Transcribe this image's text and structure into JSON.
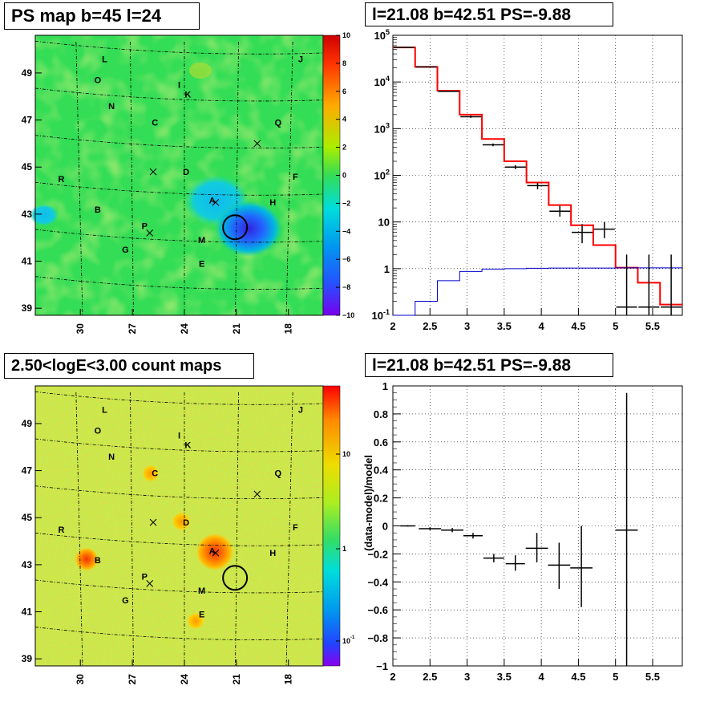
{
  "panels": {
    "ps_map_title": "PS map b=45 l=24",
    "spectrum_title": "l=21.08 b=42.51 PS=-9.88",
    "count_map_title": "2.50<logE<3.00 count maps",
    "residual_title": "l=21.08 b=42.51 PS=-9.88"
  },
  "colors": {
    "data": "#000000",
    "model_total": "#ff0000",
    "model_ps": "#0000cc",
    "ps_map_bg": "#33dd55",
    "count_map_bg": "#cce84a"
  },
  "chart_data": [
    {
      "type": "heatmap",
      "name": "ps_map",
      "title": "PS map b=45 l=24",
      "x_ticks": [
        "30",
        "27",
        "24",
        "21",
        "18"
      ],
      "y_ticks": [
        "49",
        "47",
        "45",
        "43",
        "41",
        "39"
      ],
      "colorbar_ticks": [
        "10",
        "8",
        "6",
        "4",
        "2",
        "0",
        "−2",
        "−4",
        "−6",
        "−8",
        "−10"
      ],
      "colorbar_range": [
        -10,
        10
      ],
      "source_labels": [
        {
          "t": "L",
          "l": 28.6,
          "b": 49.6
        },
        {
          "t": "J",
          "l": 17.3,
          "b": 49.6
        },
        {
          "t": "O",
          "l": 29.0,
          "b": 48.7
        },
        {
          "t": "I",
          "l": 24.3,
          "b": 48.5
        },
        {
          "t": "K",
          "l": 23.8,
          "b": 48.1
        },
        {
          "t": "N",
          "l": 28.2,
          "b": 47.6
        },
        {
          "t": "C",
          "l": 25.7,
          "b": 46.9
        },
        {
          "t": "Q",
          "l": 18.6,
          "b": 46.9
        },
        {
          "t": "D",
          "l": 23.9,
          "b": 44.8
        },
        {
          "t": "F",
          "l": 17.6,
          "b": 44.6
        },
        {
          "t": "R",
          "l": 31.1,
          "b": 44.5
        },
        {
          "t": "A",
          "l": 22.4,
          "b": 43.6
        },
        {
          "t": "H",
          "l": 18.9,
          "b": 43.5
        },
        {
          "t": "B",
          "l": 29.0,
          "b": 43.2
        },
        {
          "t": "P",
          "l": 26.3,
          "b": 42.5
        },
        {
          "t": "M",
          "l": 23.0,
          "b": 41.9
        },
        {
          "t": "G",
          "l": 27.4,
          "b": 41.5
        },
        {
          "t": "E",
          "l": 23.0,
          "b": 40.9
        }
      ],
      "cross_markers": [
        {
          "l": 25.8,
          "b": 44.8
        },
        {
          "l": 22.2,
          "b": 43.5
        },
        {
          "l": 26.0,
          "b": 42.2
        },
        {
          "l": 19.8,
          "b": 46.0
        }
      ],
      "circle_marker": {
        "l": 21.08,
        "b": 42.51
      }
    },
    {
      "type": "line",
      "name": "spectrum",
      "title": "l=21.08 b=42.51 PS=-9.88",
      "log_y": true,
      "xlim": [
        2,
        5.9
      ],
      "ylim": [
        0.1,
        100000
      ],
      "x_ticks": [
        "2",
        "2.5",
        "3",
        "3.5",
        "4",
        "4.5",
        "5",
        "5.5"
      ],
      "y_ticks": [
        "10^-1",
        "1",
        "10",
        "10^2",
        "10^3",
        "10^4",
        "10^5"
      ],
      "bin_edges": [
        2.0,
        2.3,
        2.6,
        2.9,
        3.2,
        3.5,
        3.8,
        4.1,
        4.4,
        4.7,
        5.0,
        5.3,
        5.6,
        5.9
      ],
      "series": [
        {
          "kind": "step",
          "color_key": "model_total",
          "values": [
            55000,
            21000,
            6500,
            2000,
            600,
            200,
            70,
            23,
            8.5,
            3.2,
            1.05,
            0.5,
            0.17
          ]
        },
        {
          "kind": "step",
          "color_key": "model_ps",
          "values": [
            0.1,
            0.2,
            0.55,
            0.87,
            0.98,
            1.0,
            1.02,
            1.03,
            1.03,
            1.03,
            1.04,
            1.04,
            1.04
          ]
        },
        {
          "kind": "errorbar",
          "color_key": "data",
          "points": [
            {
              "x": 2.15,
              "y": 55000,
              "lo": 55000,
              "hi": 55000
            },
            {
              "x": 2.45,
              "y": 21000,
              "lo": 21000,
              "hi": 21000
            },
            {
              "x": 2.75,
              "y": 6300,
              "lo": 6300,
              "hi": 6300
            },
            {
              "x": 3.05,
              "y": 1800,
              "lo": 1700,
              "hi": 1900
            },
            {
              "x": 3.35,
              "y": 450,
              "lo": 420,
              "hi": 480
            },
            {
              "x": 3.65,
              "y": 150,
              "lo": 135,
              "hi": 165
            },
            {
              "x": 3.95,
              "y": 60,
              "lo": 50,
              "hi": 70
            },
            {
              "x": 4.25,
              "y": 17,
              "lo": 13,
              "hi": 22
            },
            {
              "x": 4.55,
              "y": 6,
              "lo": 3.5,
              "hi": 9
            },
            {
              "x": 4.85,
              "y": 7,
              "lo": 4.5,
              "hi": 10
            },
            {
              "x": 5.15,
              "y": 0.15,
              "lo": 0.1,
              "hi": 2
            },
            {
              "x": 5.45,
              "y": 0.15,
              "lo": 0.1,
              "hi": 2
            },
            {
              "x": 5.75,
              "y": 0.15,
              "lo": 0.1,
              "hi": 2
            }
          ]
        }
      ]
    },
    {
      "type": "heatmap",
      "name": "count_map",
      "title": "2.50<logE<3.00 count maps",
      "x_ticks": [
        "30",
        "27",
        "24",
        "21",
        "18"
      ],
      "y_ticks": [
        "49",
        "47",
        "45",
        "43",
        "41",
        "39"
      ],
      "colorbar_ticks": [
        "10",
        "1",
        "10^-1"
      ],
      "log_z": true,
      "source_labels": [
        {
          "t": "L",
          "l": 28.6,
          "b": 49.6
        },
        {
          "t": "J",
          "l": 17.3,
          "b": 49.6
        },
        {
          "t": "O",
          "l": 29.0,
          "b": 48.7
        },
        {
          "t": "I",
          "l": 24.3,
          "b": 48.5
        },
        {
          "t": "K",
          "l": 23.8,
          "b": 48.1
        },
        {
          "t": "N",
          "l": 28.2,
          "b": 47.6
        },
        {
          "t": "C",
          "l": 25.7,
          "b": 46.9
        },
        {
          "t": "Q",
          "l": 18.6,
          "b": 46.9
        },
        {
          "t": "D",
          "l": 23.9,
          "b": 44.8
        },
        {
          "t": "F",
          "l": 17.6,
          "b": 44.6
        },
        {
          "t": "R",
          "l": 31.1,
          "b": 44.5
        },
        {
          "t": "A",
          "l": 22.4,
          "b": 43.6
        },
        {
          "t": "H",
          "l": 18.9,
          "b": 43.5
        },
        {
          "t": "B",
          "l": 29.0,
          "b": 43.2
        },
        {
          "t": "P",
          "l": 26.3,
          "b": 42.5
        },
        {
          "t": "M",
          "l": 23.0,
          "b": 41.9
        },
        {
          "t": "G",
          "l": 27.4,
          "b": 41.5
        },
        {
          "t": "E",
          "l": 23.0,
          "b": 40.9
        }
      ],
      "cross_markers": [
        {
          "l": 25.8,
          "b": 44.8
        },
        {
          "l": 22.2,
          "b": 43.5
        },
        {
          "l": 26.0,
          "b": 42.2
        },
        {
          "l": 19.8,
          "b": 46.0
        }
      ],
      "circle_marker": {
        "l": 21.08,
        "b": 42.51
      }
    },
    {
      "type": "scatter",
      "name": "residual",
      "title": "l=21.08 b=42.51 PS=-9.88",
      "ylabel": "(data-model)/model",
      "xlim": [
        2,
        5.9
      ],
      "ylim": [
        -1,
        1
      ],
      "x_ticks": [
        "2",
        "2.5",
        "3",
        "3.5",
        "4",
        "4.5",
        "5",
        "5.5"
      ],
      "y_ticks": [
        "1",
        "0.8",
        "0.6",
        "0.4",
        "0.2",
        "0",
        "−0.2",
        "−0.4",
        "−0.6",
        "−0.8",
        "−1"
      ],
      "points": [
        {
          "x": 2.2,
          "y": 0.0,
          "lo": -0.005,
          "hi": 0.005,
          "xerr": 0.1
        },
        {
          "x": 2.5,
          "y": -0.02,
          "lo": -0.03,
          "hi": -0.01,
          "xerr": 0.15
        },
        {
          "x": 2.8,
          "y": -0.03,
          "lo": -0.045,
          "hi": -0.015,
          "xerr": 0.15
        },
        {
          "x": 3.08,
          "y": -0.07,
          "lo": -0.09,
          "hi": -0.05,
          "xerr": 0.13
        },
        {
          "x": 3.36,
          "y": -0.23,
          "lo": -0.26,
          "hi": -0.2,
          "xerr": 0.14
        },
        {
          "x": 3.65,
          "y": -0.27,
          "lo": -0.32,
          "hi": -0.21,
          "xerr": 0.13
        },
        {
          "x": 3.94,
          "y": -0.16,
          "lo": -0.26,
          "hi": -0.05,
          "xerr": 0.15
        },
        {
          "x": 4.24,
          "y": -0.28,
          "lo": -0.45,
          "hi": -0.12,
          "xerr": 0.15
        },
        {
          "x": 4.54,
          "y": -0.3,
          "lo": -0.58,
          "hi": 0.0,
          "xerr": 0.15
        },
        {
          "x": 5.15,
          "y": -0.03,
          "lo": -1.0,
          "hi": 0.95,
          "xerr": 0.15
        }
      ]
    }
  ]
}
